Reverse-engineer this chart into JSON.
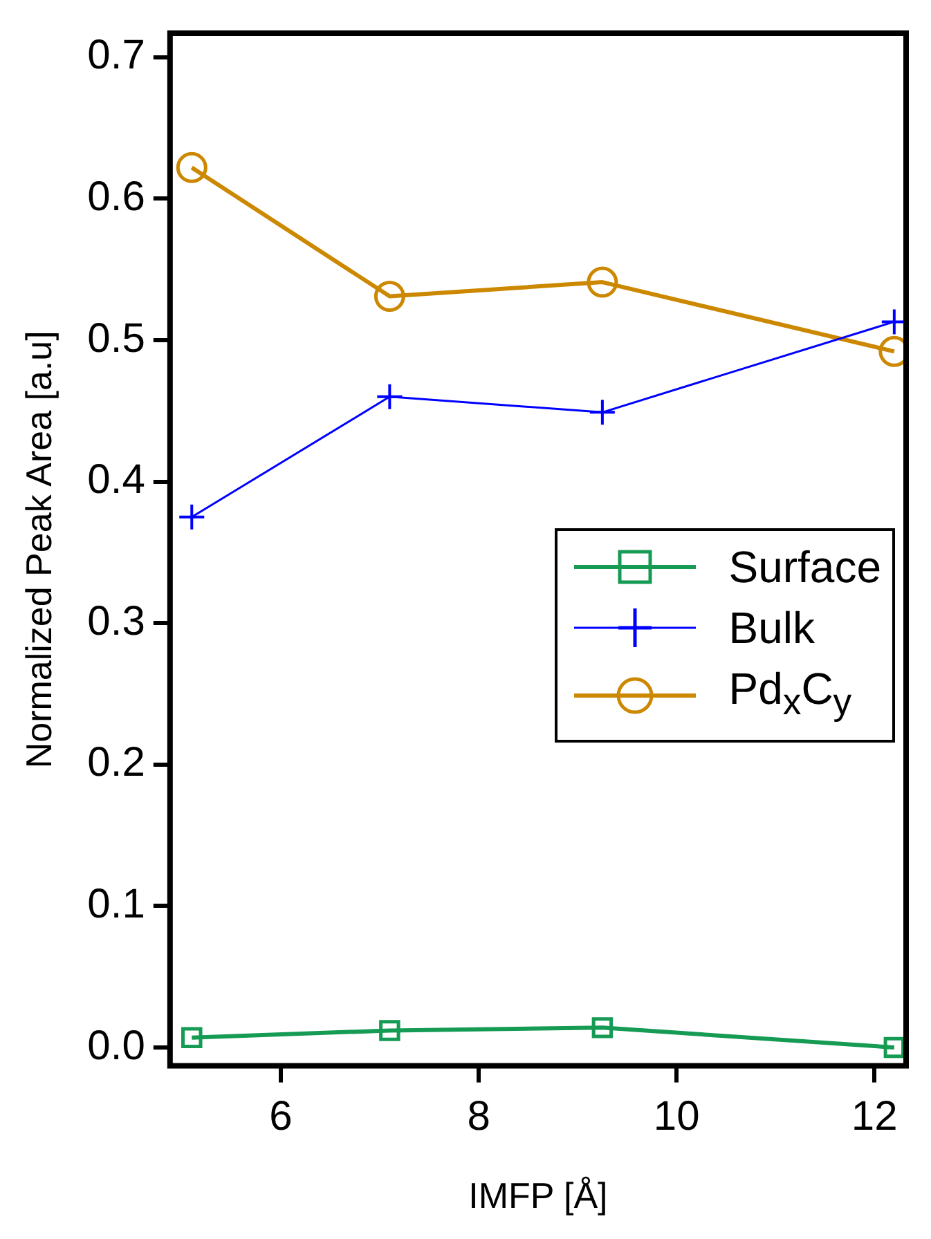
{
  "chart_data": {
    "type": "line",
    "xlabel": "IMFP [Å]",
    "ylabel": "Normalized Peak Area [a.u]",
    "x": [
      5.1,
      7.1,
      9.25,
      12.2
    ],
    "xlim": [
      4.88,
      12.32
    ],
    "xticks": [
      6,
      8,
      10,
      12
    ],
    "ylim": [
      -0.013,
      0.717
    ],
    "yticks": [
      {
        "value": 0,
        "label": "0.0"
      },
      {
        "value": 0.1,
        "label": "0.1"
      },
      {
        "value": 0.2,
        "label": "0.2"
      },
      {
        "value": 0.3,
        "label": "0.3"
      },
      {
        "value": 0.4,
        "label": "0.4"
      },
      {
        "value": 0.5,
        "label": "0.5"
      },
      {
        "value": 0.6,
        "label": "0.6"
      },
      {
        "value": 0.7,
        "label": "0.7"
      }
    ],
    "grid": false,
    "legend": "right",
    "series": [
      {
        "name": "Surface",
        "color": "#169b55",
        "marker": "square",
        "values": [
          0.007,
          0.012,
          0.014,
          0.0
        ]
      },
      {
        "name": "Bulk",
        "color": "#0000ff",
        "marker": "cross",
        "values": [
          0.375,
          0.46,
          0.449,
          0.513
        ]
      },
      {
        "name": "Pd$_{x}$C$_{y}$",
        "color": "#cc8800",
        "marker": "circle",
        "values": [
          0.622,
          0.531,
          0.541,
          0.492
        ]
      }
    ]
  }
}
